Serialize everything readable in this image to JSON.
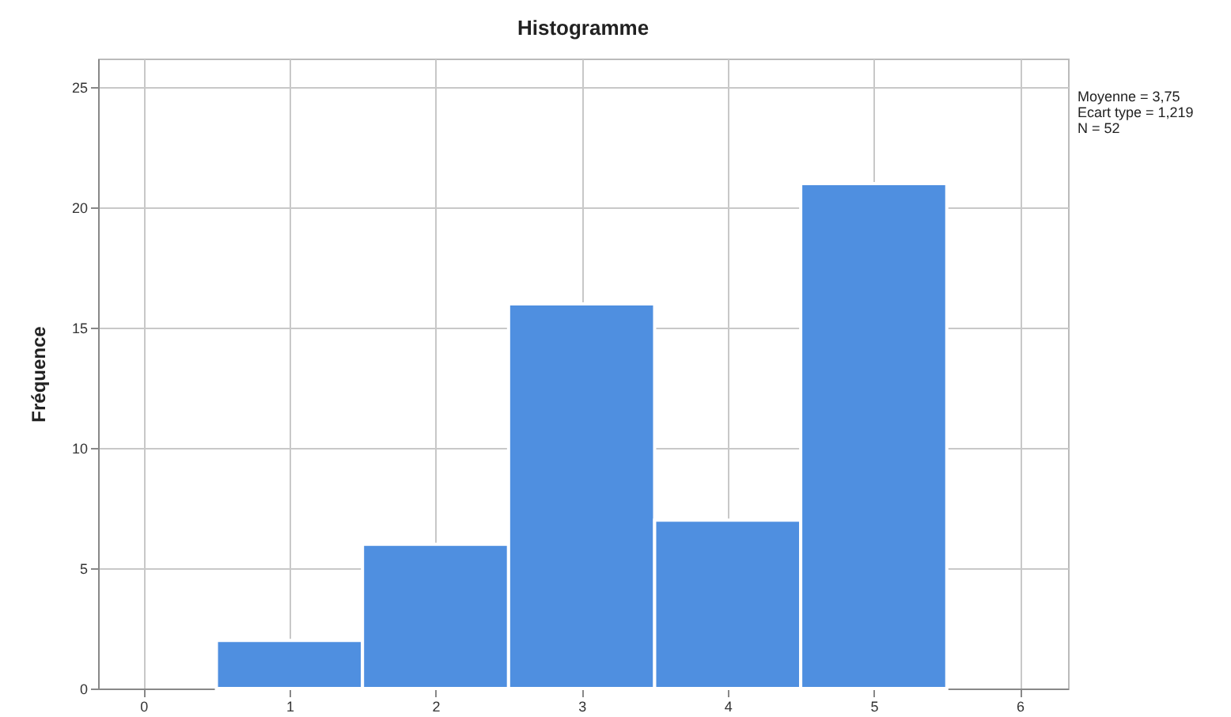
{
  "chart_data": {
    "type": "histogram",
    "title": "Histogramme",
    "ylabel": "Fréquence",
    "bins": [
      0.5,
      1.5,
      2.5,
      3.5,
      4.5,
      5.5
    ],
    "values": [
      2,
      6,
      16,
      7,
      21
    ],
    "color": "#4f8fe0",
    "xlim": [
      -0.31,
      6.33
    ],
    "xticks": [
      0,
      1,
      2,
      3,
      4,
      5,
      6
    ],
    "ylim": [
      0,
      26.2
    ],
    "yticks": [
      0,
      5,
      10,
      15,
      20,
      25
    ],
    "grid": true,
    "annotations": [
      "Moyenne = 3,75",
      "Ecart type = 1,219",
      "N = 52"
    ]
  }
}
